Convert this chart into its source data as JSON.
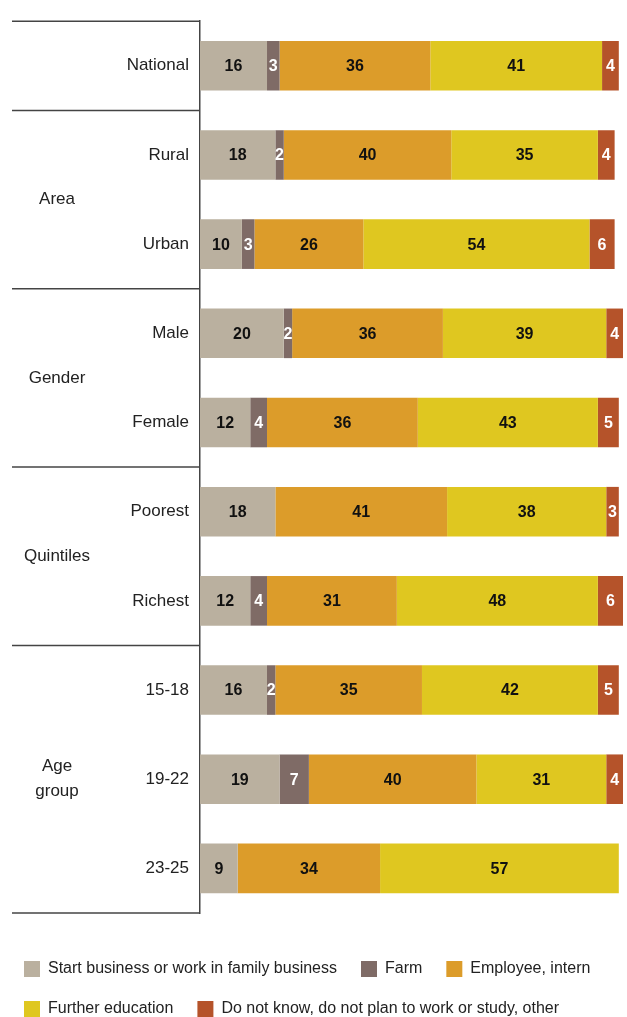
{
  "chart_data": {
    "type": "bar",
    "orientation": "horizontal",
    "stacked": true,
    "categories": [
      "National",
      "Rural",
      "Urban",
      "Male",
      "Female",
      "Poorest",
      "Richest",
      "15-18",
      "19-22",
      "23-25"
    ],
    "series": [
      {
        "name": "Start business or work in family business",
        "color": "#bab09f",
        "values": [
          16,
          18,
          10,
          20,
          12,
          18,
          12,
          16,
          19,
          9
        ]
      },
      {
        "name": "Farm",
        "color": "#7f6b66",
        "values": [
          3,
          2,
          3,
          2,
          4,
          null,
          4,
          2,
          7,
          null
        ]
      },
      {
        "name": "Employee, intern",
        "color": "#dc9c2a",
        "values": [
          36,
          40,
          26,
          36,
          36,
          41,
          31,
          35,
          40,
          34
        ]
      },
      {
        "name": "Further education",
        "color": "#dfc720",
        "values": [
          41,
          35,
          54,
          39,
          43,
          38,
          48,
          42,
          31,
          57
        ]
      },
      {
        "name": "Do not know, do not plan to work or study, other",
        "color": "#b5532a",
        "values": [
          4,
          4,
          6,
          4,
          5,
          3,
          6,
          5,
          4,
          null
        ]
      }
    ],
    "xlim": [
      0,
      101
    ],
    "annotations": [
      "Area",
      "Gender",
      "Quintiles",
      "Age group"
    ],
    "data_labels": true,
    "legend": "bottom",
    "tick_labels": "y"
  }
}
